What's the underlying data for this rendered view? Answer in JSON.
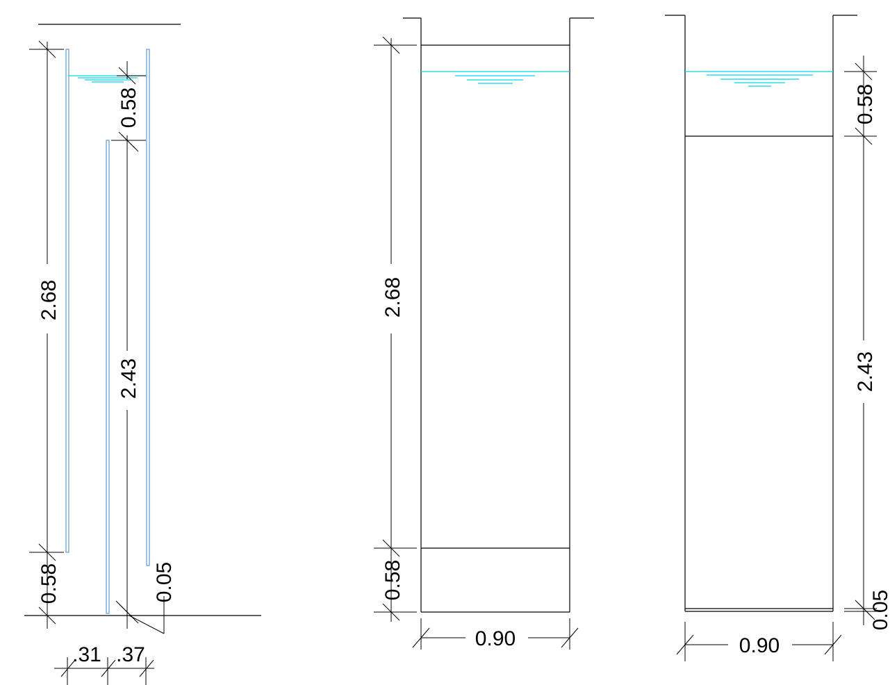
{
  "dimensions": {
    "section_a": {
      "total_height": "2.68",
      "freeboard": "0.58",
      "baffle_height": "2.43",
      "bottom_gap": "0.58",
      "baffle_clearance": "0.05",
      "left_width": ".31",
      "right_width": ".37"
    },
    "section_b": {
      "height": "2.68",
      "bottom": "0.58",
      "width": "0.90"
    },
    "section_c": {
      "top": "0.58",
      "height": "2.43",
      "bottom": "0.05",
      "width": "0.90"
    }
  },
  "colors": {
    "line": "#000000",
    "wall": "#5b9bd5",
    "water": "#00d8e8"
  }
}
